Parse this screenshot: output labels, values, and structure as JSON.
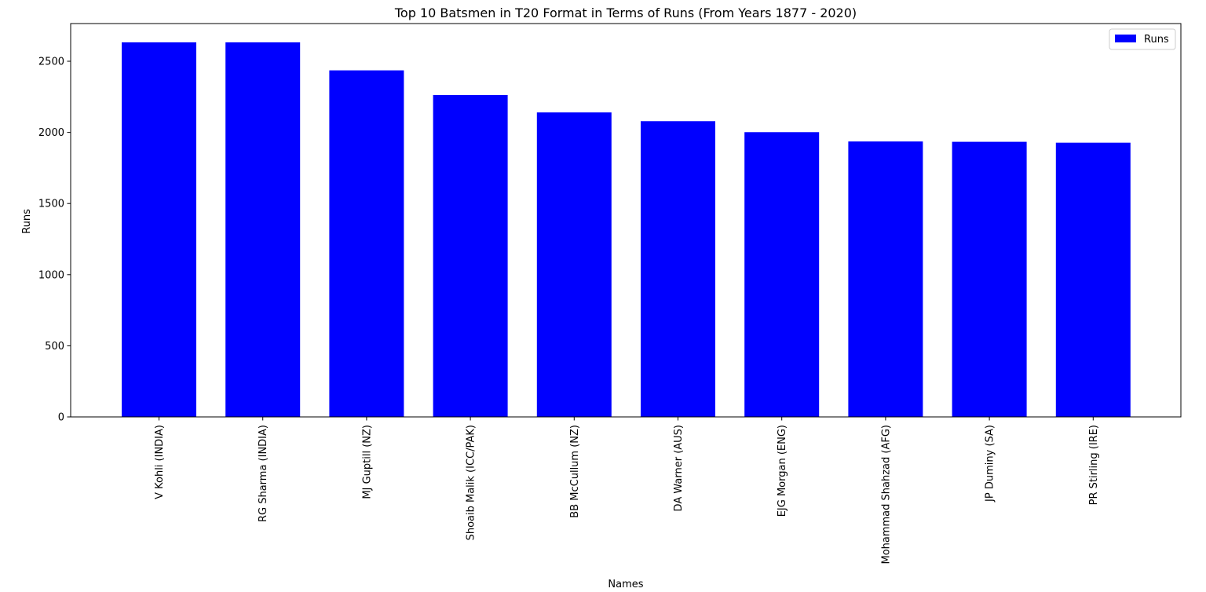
{
  "chart_data": {
    "type": "bar",
    "title": "Top 10 Batsmen in T20 Format in Terms of Runs (From Years 1877 - 2020)",
    "xlabel": "Names",
    "ylabel": "Runs",
    "categories": [
      "V Kohli (INDIA)",
      "RG Sharma (INDIA)",
      "MJ Guptill (NZ)",
      "Shoaib Malik (ICC/PAK)",
      "BB McCullum (NZ)",
      "DA Warner (AUS)",
      "EJG Morgan (ENG)",
      "Mohammad Shahzad (AFG)",
      "JP Duminy (SA)",
      "PR Stirling (IRE)"
    ],
    "series": [
      {
        "name": "Runs",
        "color": "#0000ff",
        "values": [
          2633,
          2633,
          2436,
          2263,
          2140,
          2079,
          2002,
          1936,
          1934,
          1928
        ]
      }
    ],
    "ylim": [
      0,
      2765
    ],
    "yticks": [
      0,
      500,
      1000,
      1500,
      2000,
      2500
    ],
    "legend_position": "top-right",
    "grid": false
  }
}
